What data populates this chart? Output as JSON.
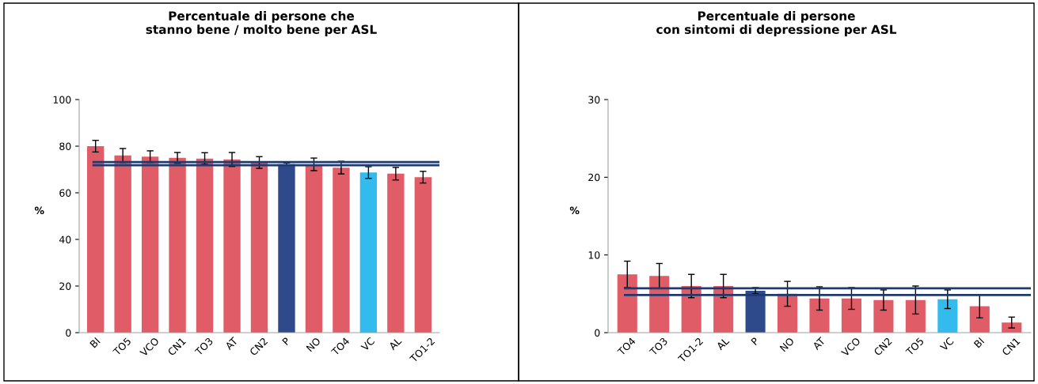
{
  "chart_data": [
    {
      "type": "bar",
      "title": "Percentuale di persone che\nstanno bene / molto bene per ASL",
      "ylabel": "%",
      "categories": [
        "BI",
        "TO5",
        "VCO",
        "CN1",
        "TO3",
        "AT",
        "CN2",
        "P",
        "NO",
        "TO4",
        "VC",
        "AL",
        "TO1-2"
      ],
      "values": [
        80,
        76,
        75.5,
        75,
        74.7,
        74.3,
        73,
        72.3,
        72.2,
        70.8,
        68.7,
        68.2,
        66.7
      ],
      "errors": [
        2.5,
        3,
        2.5,
        2.3,
        2.5,
        3,
        2.5,
        0.5,
        2.7,
        2.7,
        2.5,
        2.7,
        2.5
      ],
      "colors": [
        "#e05c66",
        "#e05c66",
        "#e05c66",
        "#e05c66",
        "#e05c66",
        "#e05c66",
        "#e05c66",
        "#2e4a8a",
        "#e05c66",
        "#e05c66",
        "#33bbee",
        "#e05c66",
        "#e05c66"
      ],
      "ylim": [
        0,
        100
      ],
      "yticks": [
        0,
        20,
        40,
        60,
        80,
        100
      ],
      "grid": false,
      "legend": false,
      "ref_lines": [
        {
          "axis": "y",
          "value": 73.2,
          "color": "#1f3a6e"
        },
        {
          "axis": "y",
          "value": 71.8,
          "color": "#1f3a6e"
        }
      ]
    },
    {
      "type": "bar",
      "title": "Percentuale di persone\ncon sintomi di depressione per ASL",
      "ylabel": "%",
      "categories": [
        "TO4",
        "TO3",
        "TO1-2",
        "AL",
        "P",
        "NO",
        "AT",
        "VCO",
        "CN2",
        "TO5",
        "VC",
        "BI",
        "CN1"
      ],
      "values": [
        7.5,
        7.3,
        6,
        6,
        5.4,
        5,
        4.4,
        4.4,
        4.2,
        4.2,
        4.3,
        3.4,
        1.3
      ],
      "errors": [
        1.7,
        1.6,
        1.5,
        1.5,
        0.4,
        1.6,
        1.5,
        1.4,
        1.3,
        1.8,
        1.2,
        1.5,
        0.7
      ],
      "colors": [
        "#e05c66",
        "#e05c66",
        "#e05c66",
        "#e05c66",
        "#2e4a8a",
        "#e05c66",
        "#e05c66",
        "#e05c66",
        "#e05c66",
        "#e05c66",
        "#33bbee",
        "#e05c66",
        "#e05c66"
      ],
      "ylim": [
        0,
        30
      ],
      "yticks": [
        0,
        10,
        20,
        30
      ],
      "grid": false,
      "legend": false,
      "ref_lines": [
        {
          "axis": "y",
          "value": 5.7,
          "color": "#1f3a6e"
        },
        {
          "axis": "y",
          "value": 4.85,
          "color": "#1f3a6e"
        }
      ]
    }
  ]
}
